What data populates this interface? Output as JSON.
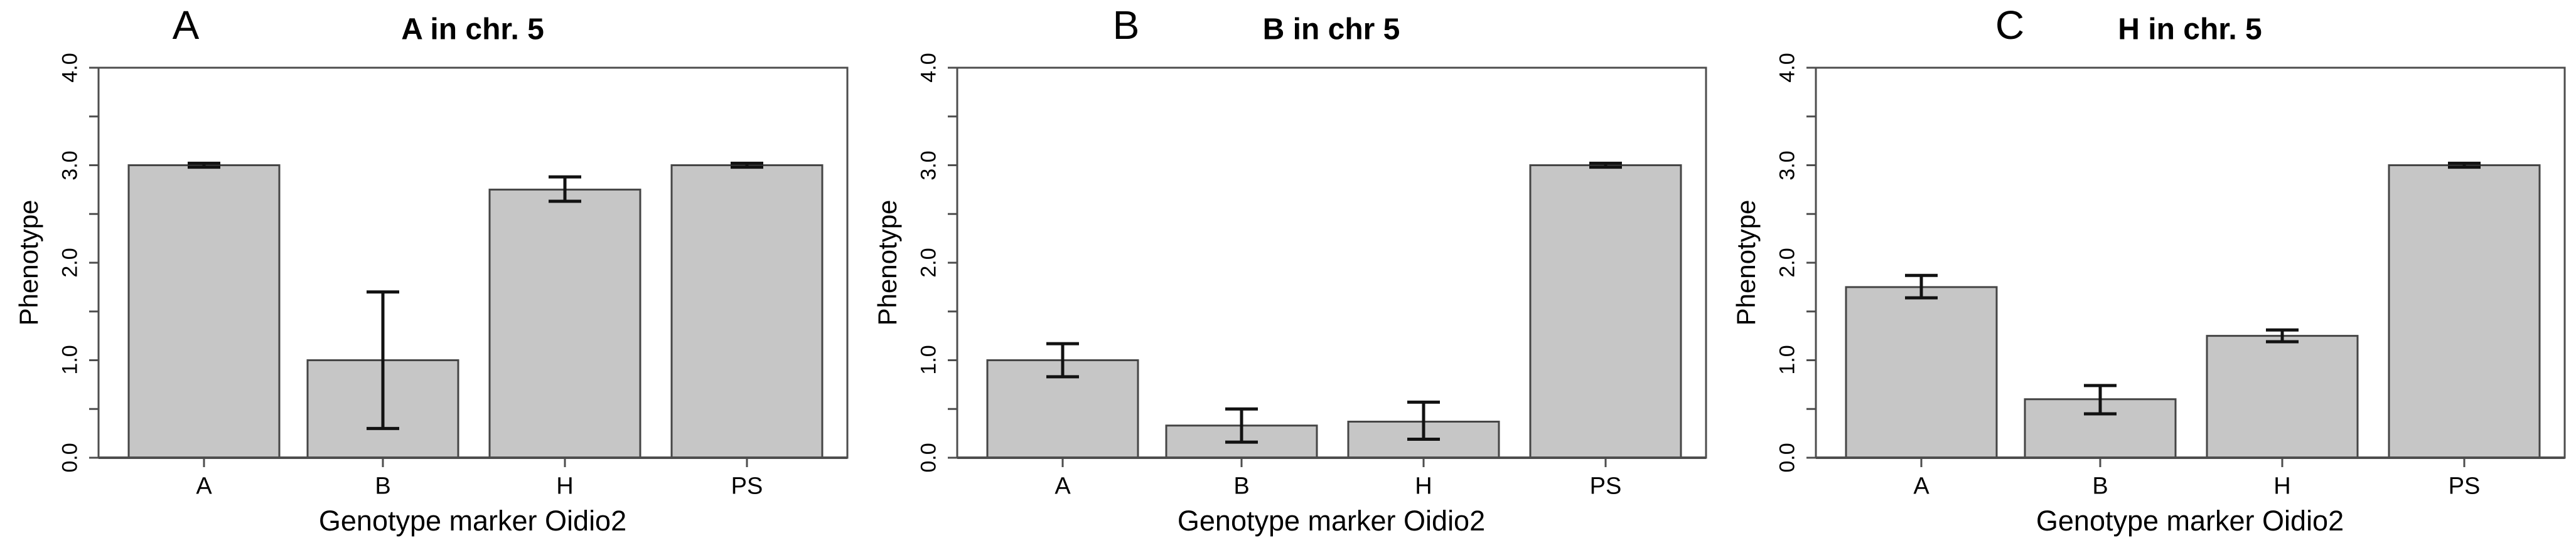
{
  "figure": {
    "ylabel": "Phenotype",
    "xlabel": "Genotype marker Oidio2",
    "ytick_labels": [
      "0.0",
      "1.0",
      "2.0",
      "3.0",
      "4.0"
    ],
    "ytick_values": [
      0,
      1,
      2,
      3,
      4
    ],
    "minor_tick_step": 0.5,
    "colors": {
      "background": "#ffffff",
      "bar_fill": "#c6c6c6",
      "bar_stroke": "#454545",
      "axis": "#4d4d4d",
      "error_bar": "#121212",
      "text": "#000000"
    }
  },
  "chart_data": [
    {
      "type": "bar",
      "panel_label": "A",
      "title": "A in chr. 5",
      "xlabel": "Genotype marker Oidio2",
      "ylabel": "Phenotype",
      "categories": [
        "A",
        "B",
        "H",
        "PS"
      ],
      "values": [
        3.0,
        1.0,
        2.75,
        3.0
      ],
      "error_low": [
        2.98,
        0.3,
        2.63,
        2.98
      ],
      "error_high": [
        3.02,
        1.7,
        2.88,
        3.02
      ],
      "ylim": [
        0,
        4
      ],
      "grid": false,
      "legend": "none"
    },
    {
      "type": "bar",
      "panel_label": "B",
      "title": "B in chr 5",
      "xlabel": "Genotype marker Oidio2",
      "ylabel": "Phenotype",
      "categories": [
        "A",
        "B",
        "H",
        "PS"
      ],
      "values": [
        1.0,
        0.33,
        0.37,
        3.0
      ],
      "error_low": [
        0.83,
        0.16,
        0.19,
        2.98
      ],
      "error_high": [
        1.17,
        0.5,
        0.57,
        3.02
      ],
      "ylim": [
        0,
        4
      ],
      "grid": false,
      "legend": "none"
    },
    {
      "type": "bar",
      "panel_label": "C",
      "title": "H in chr. 5",
      "xlabel": "Genotype marker Oidio2",
      "ylabel": "Phenotype",
      "categories": [
        "A",
        "B",
        "H",
        "PS"
      ],
      "values": [
        1.75,
        0.6,
        1.25,
        3.0
      ],
      "error_low": [
        1.64,
        0.45,
        1.19,
        2.98
      ],
      "error_high": [
        1.87,
        0.74,
        1.31,
        3.02
      ],
      "ylim": [
        0,
        4
      ],
      "grid": false,
      "legend": "none"
    }
  ]
}
